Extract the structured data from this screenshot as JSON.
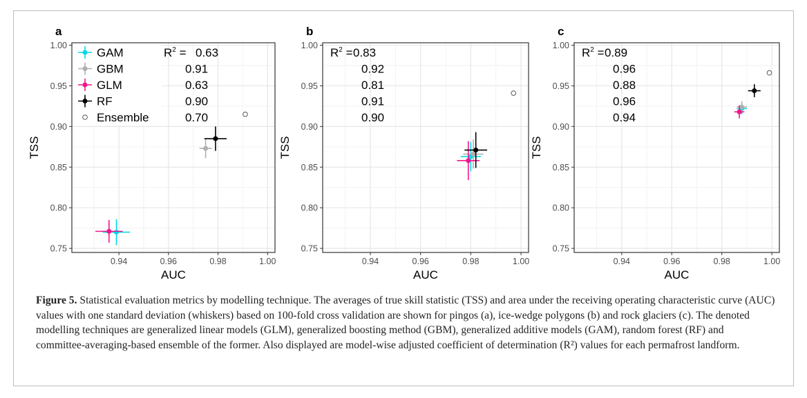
{
  "chart_data": [
    {
      "panel": "a",
      "type": "scatter",
      "xlabel": "AUC",
      "ylabel": "TSS",
      "xlim": [
        0.921,
        1.003
      ],
      "ylim": [
        0.745,
        1.003
      ],
      "xticks": [
        "0.94",
        "0.96",
        "0.98",
        "1.00"
      ],
      "yticks": [
        "0.75",
        "0.80",
        "0.85",
        "0.90",
        "0.95",
        "1.00"
      ],
      "grid": true,
      "legend": [
        "GAM",
        "GBM",
        "GLM",
        "RF",
        "Ensemble"
      ],
      "r2_label": "R² = ",
      "r2": [
        "0.63",
        "0.91",
        "0.63",
        "0.90",
        "0.70"
      ],
      "series": [
        {
          "name": "GAM",
          "color": "#00d8e8",
          "x": 0.939,
          "y": 0.77,
          "xerr": 0.0055,
          "yerr": 0.016
        },
        {
          "name": "GBM",
          "color": "#b0b0b0",
          "x": 0.975,
          "y": 0.873,
          "xerr": 0.0025,
          "yerr": 0.012
        },
        {
          "name": "GLM",
          "color": "#f0158c",
          "x": 0.936,
          "y": 0.771,
          "xerr": 0.0055,
          "yerr": 0.014
        },
        {
          "name": "RF",
          "color": "#000000",
          "x": 0.979,
          "y": 0.885,
          "xerr": 0.0045,
          "yerr": 0.015
        },
        {
          "name": "Ensemble",
          "color": "#555555",
          "x": 0.991,
          "y": 0.915,
          "xerr": 0,
          "yerr": 0
        }
      ]
    },
    {
      "panel": "b",
      "type": "scatter",
      "xlabel": "AUC",
      "ylabel": "TSS",
      "xlim": [
        0.921,
        1.003
      ],
      "ylim": [
        0.745,
        1.003
      ],
      "xticks": [
        "0.94",
        "0.96",
        "0.98",
        "1.00"
      ],
      "yticks": [
        "0.75",
        "0.80",
        "0.85",
        "0.90",
        "0.95",
        "1.00"
      ],
      "grid": true,
      "r2_label": "R² = ",
      "r2": [
        "0.83",
        "0.92",
        "0.81",
        "0.91",
        "0.90"
      ],
      "series": [
        {
          "name": "GAM",
          "color": "#00d8e8",
          "x": 0.98,
          "y": 0.863,
          "xerr": 0.004,
          "yerr": 0.018
        },
        {
          "name": "GBM",
          "color": "#b0b0b0",
          "x": 0.981,
          "y": 0.866,
          "xerr": 0.004,
          "yerr": 0.018
        },
        {
          "name": "GLM",
          "color": "#f0158c",
          "x": 0.979,
          "y": 0.858,
          "xerr": 0.0045,
          "yerr": 0.024
        },
        {
          "name": "RF",
          "color": "#000000",
          "x": 0.982,
          "y": 0.871,
          "xerr": 0.0045,
          "yerr": 0.022
        },
        {
          "name": "Ensemble",
          "color": "#555555",
          "x": 0.997,
          "y": 0.941,
          "xerr": 0,
          "yerr": 0
        }
      ]
    },
    {
      "panel": "c",
      "type": "scatter",
      "xlabel": "AUC",
      "ylabel": "TSS",
      "xlim": [
        0.921,
        1.003
      ],
      "ylim": [
        0.745,
        1.003
      ],
      "xticks": [
        "0.94",
        "0.96",
        "0.98",
        "1.00"
      ],
      "yticks": [
        "0.75",
        "0.80",
        "0.85",
        "0.90",
        "0.95",
        "1.00"
      ],
      "grid": true,
      "r2_label": "R² = ",
      "r2": [
        "0.89",
        "0.96",
        "0.88",
        "0.96",
        "0.94"
      ],
      "series": [
        {
          "name": "GAM",
          "color": "#00d8e8",
          "x": 0.988,
          "y": 0.922,
          "xerr": 0.002,
          "yerr": 0.007
        },
        {
          "name": "GBM",
          "color": "#b0b0b0",
          "x": 0.988,
          "y": 0.924,
          "xerr": 0.002,
          "yerr": 0.007
        },
        {
          "name": "GLM",
          "color": "#f0158c",
          "x": 0.987,
          "y": 0.918,
          "xerr": 0.002,
          "yerr": 0.008
        },
        {
          "name": "RF",
          "color": "#000000",
          "x": 0.993,
          "y": 0.944,
          "xerr": 0.0025,
          "yerr": 0.008
        },
        {
          "name": "Ensemble",
          "color": "#555555",
          "x": 0.999,
          "y": 0.966,
          "xerr": 0,
          "yerr": 0
        }
      ]
    }
  ],
  "caption": {
    "label": "Figure 5.",
    "text": "Statistical evaluation metrics by modelling technique. The averages of true skill statistic (TSS) and area under the receiving operating characteristic curve (AUC) values with one standard deviation (whiskers) based on 100-fold cross validation are shown for pingos (a), ice-wedge polygons (b) and rock glaciers (c). The denoted modelling techniques are generalized linear models (GLM), generalized boosting method (GBM), generalized additive models (GAM), random forest (RF) and committee-averaging-based ensemble of the former. Also displayed are model-wise adjusted coefficient of determination (R²) values for each permafrost landform."
  }
}
